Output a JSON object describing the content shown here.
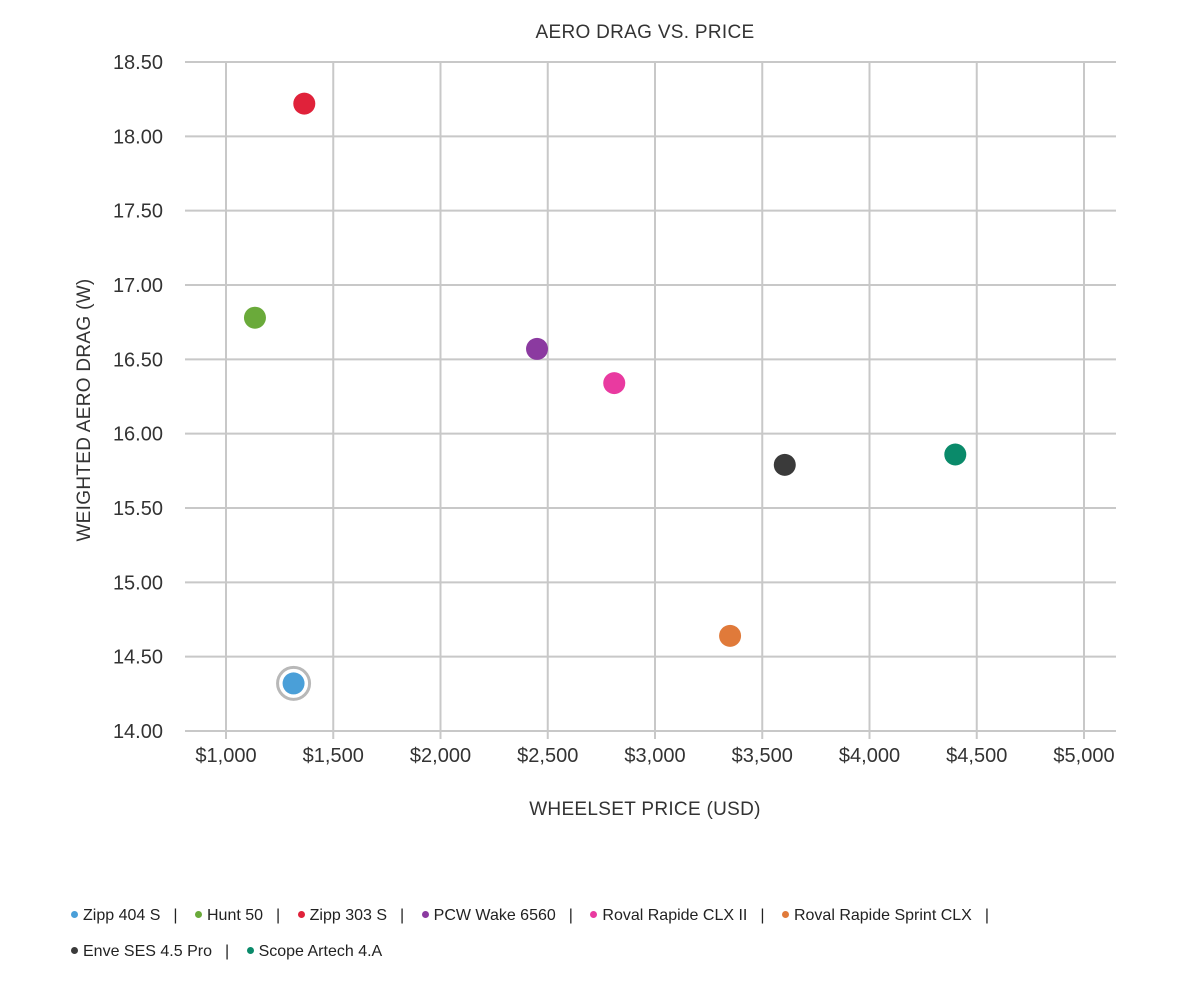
{
  "chart_data": {
    "type": "scatter",
    "title": "AERO DRAG VS. PRICE",
    "xlabel": "WHEELSET PRICE (USD)",
    "ylabel": "WEIGHTED AERO DRAG (W)",
    "xlim": [
      1000,
      5000
    ],
    "ylim": [
      14.0,
      18.5
    ],
    "x_ticks": [
      1000,
      1500,
      2000,
      2500,
      3000,
      3500,
      4000,
      4500,
      5000
    ],
    "x_tick_labels": [
      "$1,000",
      "$1,500",
      "$2,000",
      "$2,500",
      "$3,000",
      "$3,500",
      "$4,000",
      "$4,500",
      "$5,000"
    ],
    "y_ticks": [
      14.0,
      14.5,
      15.0,
      15.5,
      16.0,
      16.5,
      17.0,
      17.5,
      18.0,
      18.5
    ],
    "y_tick_labels": [
      "14.00",
      "14.50",
      "15.00",
      "15.50",
      "16.00",
      "16.50",
      "17.00",
      "17.50",
      "18.00",
      "18.50"
    ],
    "grid": true,
    "legend_position": "bottom",
    "series": [
      {
        "name": "Zipp 404 S",
        "x": 1315,
        "y": 14.32,
        "color": "#4a9fd8",
        "highlighted": true
      },
      {
        "name": "Hunt 50",
        "x": 1135,
        "y": 16.78,
        "color": "#6aaa3a"
      },
      {
        "name": "Zipp 303 S",
        "x": 1365,
        "y": 18.22,
        "color": "#e0223a"
      },
      {
        "name": "PCW Wake 6560",
        "x": 2450,
        "y": 16.57,
        "color": "#8b3aa0"
      },
      {
        "name": "Roval Rapide CLX II",
        "x": 2810,
        "y": 16.34,
        "color": "#e93aa0"
      },
      {
        "name": "Roval Rapide Sprint CLX",
        "x": 3350,
        "y": 14.64,
        "color": "#e07a3a"
      },
      {
        "name": "Enve SES 4.5 Pro",
        "x": 3605,
        "y": 15.79,
        "color": "#3a3a3a"
      },
      {
        "name": "Scope Artech 4.A",
        "x": 4400,
        "y": 15.86,
        "color": "#0a8a6a"
      }
    ]
  }
}
